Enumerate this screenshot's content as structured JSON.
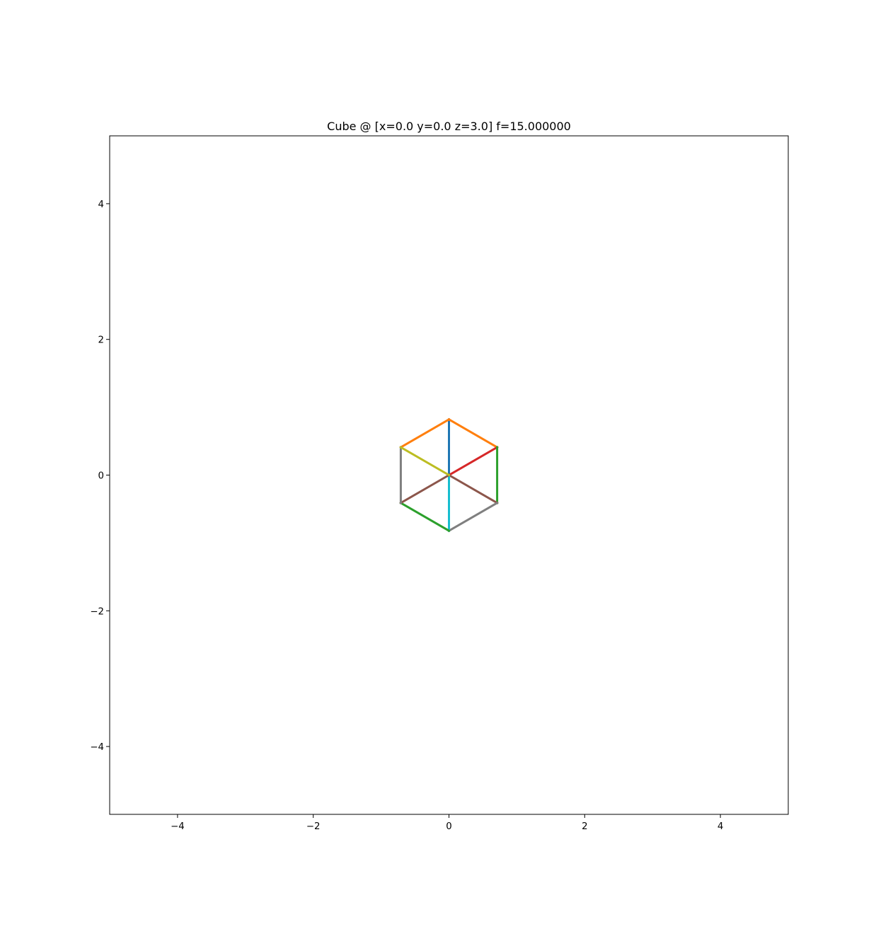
{
  "chart_data": {
    "type": "line",
    "title": "Cube @ [x=0.0 y=0.0 z=3.0] f=15.000000",
    "xlabel": "",
    "ylabel": "",
    "xlim": [
      -5,
      5
    ],
    "ylim": [
      -5,
      5
    ],
    "grid": false,
    "legend": "none",
    "xticks": [
      -4,
      -2,
      0,
      2,
      4
    ],
    "yticks": [
      -4,
      -2,
      0,
      2,
      4
    ],
    "xtick_labels": [
      "−4",
      "−2",
      "0",
      "2",
      "4"
    ],
    "ytick_labels": [
      "−4",
      "−2",
      "0",
      "2",
      "4"
    ],
    "series": [
      {
        "color": "#1f77b4",
        "x": [
          0.0,
          0.0
        ],
        "y": [
          0.0,
          0.82
        ]
      },
      {
        "color": "#ff7f0e",
        "x": [
          0.0,
          0.71
        ],
        "y": [
          0.82,
          0.41
        ]
      },
      {
        "color": "#ff7f0e",
        "x": [
          0.0,
          -0.71
        ],
        "y": [
          0.82,
          0.41
        ]
      },
      {
        "color": "#d62728",
        "x": [
          0.0,
          0.71
        ],
        "y": [
          0.0,
          0.41
        ]
      },
      {
        "color": "#2ca02c",
        "x": [
          0.71,
          0.71
        ],
        "y": [
          0.41,
          -0.41
        ]
      },
      {
        "color": "#8c564b",
        "x": [
          0.0,
          0.71
        ],
        "y": [
          0.0,
          -0.41
        ]
      },
      {
        "color": "#7f7f7f",
        "x": [
          0.71,
          0.0
        ],
        "y": [
          -0.41,
          -0.82
        ]
      },
      {
        "color": "#17becf",
        "x": [
          0.0,
          0.0
        ],
        "y": [
          0.0,
          -0.82
        ]
      },
      {
        "color": "#2ca02c",
        "x": [
          0.0,
          -0.71
        ],
        "y": [
          -0.82,
          -0.41
        ]
      },
      {
        "color": "#8c564b",
        "x": [
          0.0,
          -0.71
        ],
        "y": [
          0.0,
          -0.41
        ]
      },
      {
        "color": "#7f7f7f",
        "x": [
          -0.71,
          -0.71
        ],
        "y": [
          -0.41,
          0.41
        ]
      },
      {
        "color": "#bcbd22",
        "x": [
          0.0,
          -0.71
        ],
        "y": [
          0.0,
          0.41
        ]
      }
    ]
  }
}
